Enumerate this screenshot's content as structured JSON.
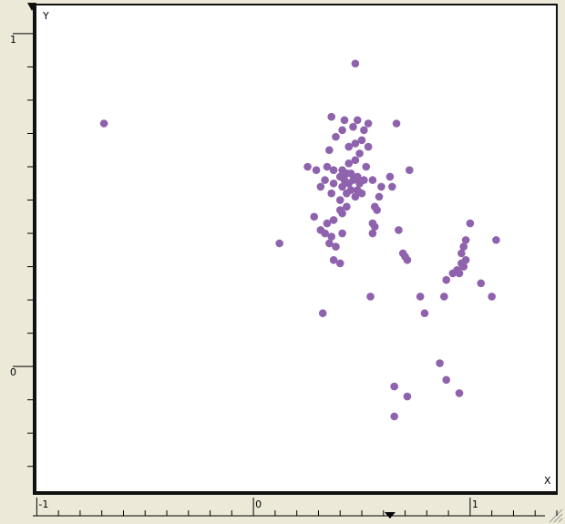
{
  "colors": {
    "point": "#8f62ad",
    "frame": "#111111",
    "ruler_bg": "#ece9d8",
    "plot_bg": "#ffffff"
  },
  "chart_data": {
    "type": "scatter",
    "xlabel": "X",
    "ylabel": "Y",
    "xlim": [
      -1.01,
      1.4
    ],
    "ylim": [
      -0.38,
      1.09
    ],
    "x_tick_labels": [
      {
        "value": -1,
        "label": "-1"
      },
      {
        "value": 0,
        "label": "0"
      },
      {
        "value": 1,
        "label": "1"
      }
    ],
    "y_tick_labels": [
      {
        "value": 1,
        "label": "1"
      },
      {
        "value": 0,
        "label": "0"
      }
    ],
    "x_minor_step": 0.1,
    "y_minor_step": 0.1,
    "ruler_marker_x": 0.63,
    "points": [
      {
        "x": 0.47,
        "y": 0.91
      },
      {
        "x": -0.69,
        "y": 0.73
      },
      {
        "x": 0.36,
        "y": 0.75
      },
      {
        "x": 0.42,
        "y": 0.74
      },
      {
        "x": 0.48,
        "y": 0.74
      },
      {
        "x": 0.53,
        "y": 0.73
      },
      {
        "x": 0.41,
        "y": 0.71
      },
      {
        "x": 0.46,
        "y": 0.72
      },
      {
        "x": 0.51,
        "y": 0.71
      },
      {
        "x": 0.38,
        "y": 0.69
      },
      {
        "x": 0.47,
        "y": 0.67
      },
      {
        "x": 0.5,
        "y": 0.68
      },
      {
        "x": 0.35,
        "y": 0.65
      },
      {
        "x": 0.44,
        "y": 0.66
      },
      {
        "x": 0.49,
        "y": 0.64
      },
      {
        "x": 0.53,
        "y": 0.66
      },
      {
        "x": 0.66,
        "y": 0.73
      },
      {
        "x": 0.25,
        "y": 0.6
      },
      {
        "x": 0.29,
        "y": 0.59
      },
      {
        "x": 0.34,
        "y": 0.6
      },
      {
        "x": 0.37,
        "y": 0.59
      },
      {
        "x": 0.41,
        "y": 0.59
      },
      {
        "x": 0.44,
        "y": 0.61
      },
      {
        "x": 0.47,
        "y": 0.62
      },
      {
        "x": 0.52,
        "y": 0.6
      },
      {
        "x": 0.4,
        "y": 0.57
      },
      {
        "x": 0.43,
        "y": 0.58
      },
      {
        "x": 0.45,
        "y": 0.58
      },
      {
        "x": 0.48,
        "y": 0.57
      },
      {
        "x": 0.42,
        "y": 0.56
      },
      {
        "x": 0.46,
        "y": 0.56
      },
      {
        "x": 0.49,
        "y": 0.55
      },
      {
        "x": 0.44,
        "y": 0.55
      },
      {
        "x": 0.33,
        "y": 0.56
      },
      {
        "x": 0.37,
        "y": 0.55
      },
      {
        "x": 0.41,
        "y": 0.54
      },
      {
        "x": 0.45,
        "y": 0.53
      },
      {
        "x": 0.48,
        "y": 0.53
      },
      {
        "x": 0.51,
        "y": 0.56
      },
      {
        "x": 0.55,
        "y": 0.56
      },
      {
        "x": 0.31,
        "y": 0.54
      },
      {
        "x": 0.36,
        "y": 0.52
      },
      {
        "x": 0.43,
        "y": 0.52
      },
      {
        "x": 0.47,
        "y": 0.51
      },
      {
        "x": 0.4,
        "y": 0.5
      },
      {
        "x": 0.5,
        "y": 0.52
      },
      {
        "x": 0.59,
        "y": 0.54
      },
      {
        "x": 0.63,
        "y": 0.57
      },
      {
        "x": 0.64,
        "y": 0.54
      },
      {
        "x": 0.72,
        "y": 0.59
      },
      {
        "x": 0.58,
        "y": 0.51
      },
      {
        "x": 0.56,
        "y": 0.48
      },
      {
        "x": 0.57,
        "y": 0.47
      },
      {
        "x": 0.4,
        "y": 0.47
      },
      {
        "x": 0.43,
        "y": 0.48
      },
      {
        "x": 0.41,
        "y": 0.46
      },
      {
        "x": 0.28,
        "y": 0.45
      },
      {
        "x": 0.34,
        "y": 0.43
      },
      {
        "x": 0.37,
        "y": 0.44
      },
      {
        "x": 0.31,
        "y": 0.41
      },
      {
        "x": 0.33,
        "y": 0.4
      },
      {
        "x": 0.36,
        "y": 0.39
      },
      {
        "x": 0.35,
        "y": 0.37
      },
      {
        "x": 0.38,
        "y": 0.36
      },
      {
        "x": 0.41,
        "y": 0.4
      },
      {
        "x": 0.55,
        "y": 0.4
      },
      {
        "x": 0.56,
        "y": 0.42
      },
      {
        "x": 0.55,
        "y": 0.43
      },
      {
        "x": 0.12,
        "y": 0.37
      },
      {
        "x": 0.37,
        "y": 0.32
      },
      {
        "x": 0.4,
        "y": 0.31
      },
      {
        "x": 0.67,
        "y": 0.41
      },
      {
        "x": 0.69,
        "y": 0.34
      },
      {
        "x": 0.7,
        "y": 0.33
      },
      {
        "x": 0.71,
        "y": 0.32
      },
      {
        "x": 0.54,
        "y": 0.21
      },
      {
        "x": 0.32,
        "y": 0.16
      },
      {
        "x": 0.77,
        "y": 0.21
      },
      {
        "x": 0.79,
        "y": 0.16
      },
      {
        "x": 0.89,
        "y": 0.26
      },
      {
        "x": 0.92,
        "y": 0.28
      },
      {
        "x": 0.94,
        "y": 0.29
      },
      {
        "x": 0.96,
        "y": 0.31
      },
      {
        "x": 0.95,
        "y": 0.28
      },
      {
        "x": 0.97,
        "y": 0.3
      },
      {
        "x": 0.98,
        "y": 0.32
      },
      {
        "x": 0.96,
        "y": 0.34
      },
      {
        "x": 0.97,
        "y": 0.36
      },
      {
        "x": 0.98,
        "y": 0.38
      },
      {
        "x": 1.0,
        "y": 0.43
      },
      {
        "x": 1.12,
        "y": 0.38
      },
      {
        "x": 1.05,
        "y": 0.25
      },
      {
        "x": 1.1,
        "y": 0.21
      },
      {
        "x": 0.88,
        "y": 0.21
      },
      {
        "x": 0.86,
        "y": 0.01
      },
      {
        "x": 0.89,
        "y": -0.04
      },
      {
        "x": 0.95,
        "y": -0.08
      },
      {
        "x": 0.65,
        "y": -0.06
      },
      {
        "x": 0.71,
        "y": -0.09
      },
      {
        "x": 0.65,
        "y": -0.15
      }
    ]
  }
}
